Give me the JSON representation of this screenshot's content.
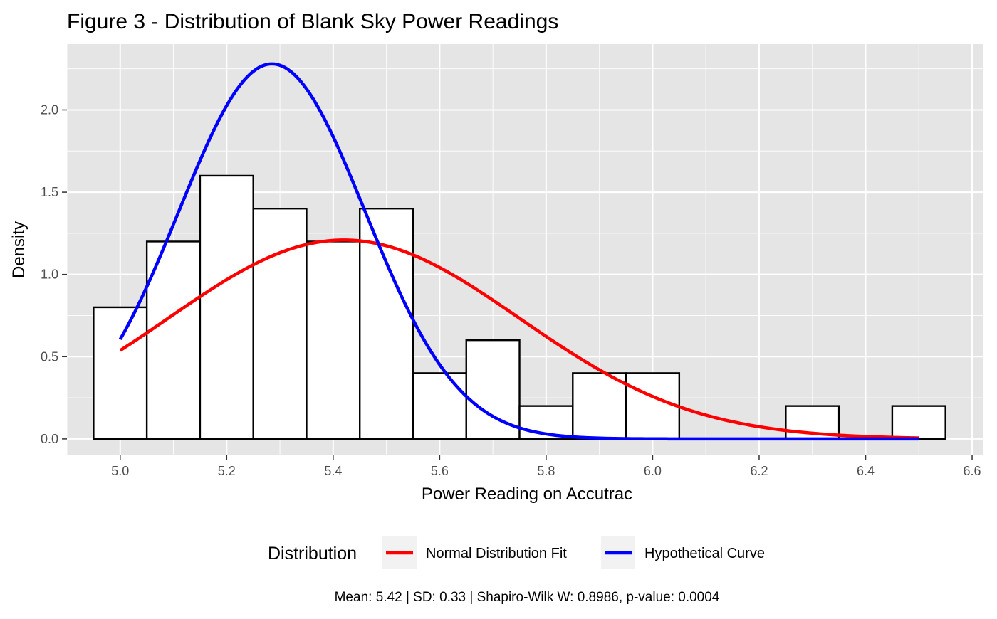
{
  "chart_data": {
    "type": "bar",
    "title": "Figure 3 - Distribution of Blank Sky Power Readings",
    "xlabel": "Power Reading on Accutrac",
    "ylabel": "Density",
    "xlim": [
      4.9,
      6.62
    ],
    "ylim": [
      -0.1,
      2.4
    ],
    "x_ticks": [
      "5.0",
      "5.2",
      "5.4",
      "5.6",
      "5.8",
      "6.0",
      "6.2",
      "6.4",
      "6.6"
    ],
    "y_ticks": [
      "0.0",
      "0.5",
      "1.0",
      "1.5",
      "2.0"
    ],
    "grid": true,
    "histogram": {
      "bin_width": 0.1,
      "bins": [
        {
          "x": 5.0,
          "density": 0.8
        },
        {
          "x": 5.1,
          "density": 1.2
        },
        {
          "x": 5.2,
          "density": 1.6
        },
        {
          "x": 5.3,
          "density": 1.4
        },
        {
          "x": 5.4,
          "density": 1.2
        },
        {
          "x": 5.5,
          "density": 1.4
        },
        {
          "x": 5.6,
          "density": 0.4
        },
        {
          "x": 5.7,
          "density": 0.6
        },
        {
          "x": 5.8,
          "density": 0.2
        },
        {
          "x": 5.9,
          "density": 0.4
        },
        {
          "x": 6.0,
          "density": 0.4
        },
        {
          "x": 6.3,
          "density": 0.2
        },
        {
          "x": 6.5,
          "density": 0.2
        }
      ]
    },
    "series": [
      {
        "name": "Normal Distribution Fit",
        "color": "#ff0000",
        "mean": 5.42,
        "sd": 0.33,
        "x_range": [
          5.0,
          6.5
        ]
      },
      {
        "name": "Hypothetical Curve",
        "color": "#0000ff",
        "mean": 5.285,
        "sd": 0.175,
        "x_range": [
          5.0,
          6.5
        ]
      }
    ],
    "legend": {
      "title": "Distribution",
      "position": "bottom",
      "items": [
        "Normal Distribution Fit",
        "Hypothetical Curve"
      ]
    },
    "caption": "Mean: 5.42 | SD: 0.33 | Shapiro-Wilk W: 0.8986, p-value: 0.0004"
  }
}
